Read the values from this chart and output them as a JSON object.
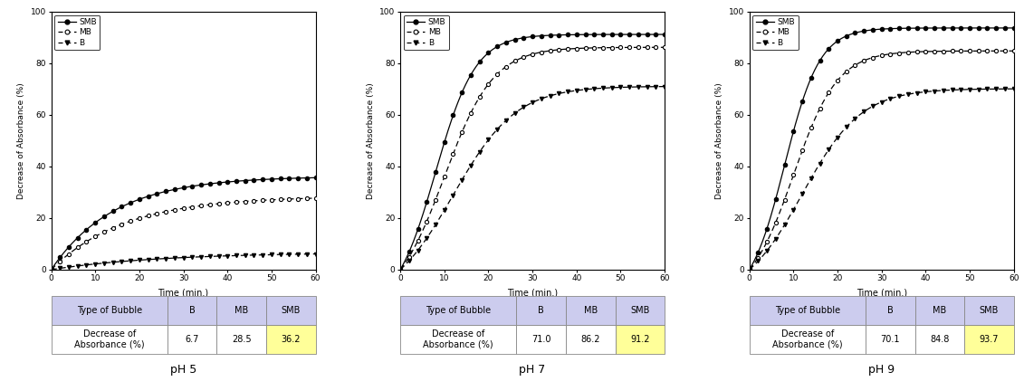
{
  "panels": [
    {
      "title": "pH 5",
      "SMB_final": 36.2,
      "MB_final": 28.5,
      "B_final": 6.7,
      "smb_k": 0.07,
      "mb_k": 0.06,
      "b_k": 0.04
    },
    {
      "title": "pH 7",
      "SMB_final": 91.2,
      "MB_final": 86.2,
      "B_final": 71.0,
      "smb_k": 0.22,
      "mb_k": 0.18,
      "b_k": 0.14
    },
    {
      "title": "pH 9",
      "SMB_final": 93.7,
      "MB_final": 84.8,
      "B_final": 70.1,
      "smb_k": 0.25,
      "mb_k": 0.2,
      "b_k": 0.15
    }
  ],
  "table_headers": [
    "Type of Bubble",
    "B",
    "MB",
    "SMB"
  ],
  "table_row_label": "Decrease of\nAbsorbance (%)",
  "xlabel": "Time (min.)",
  "ylabel": "Decrease of Absorbance (%)",
  "ylim": [
    0,
    100
  ],
  "xlim": [
    0,
    60
  ],
  "xticks": [
    0,
    10,
    20,
    30,
    40,
    50,
    60
  ],
  "yticks": [
    0,
    20,
    40,
    60,
    80,
    100
  ],
  "table_header_color": "#ccccee",
  "smb_cell_color": "#ffff99",
  "fig_bg": "#ffffff",
  "marker_every": 3
}
